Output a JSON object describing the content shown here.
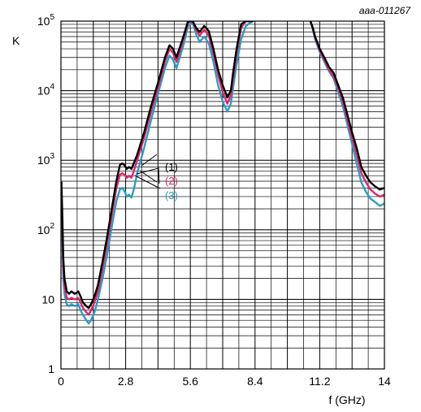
{
  "figure_id": "aaa-011267",
  "chart_data": {
    "type": "line",
    "title": "",
    "xlabel": "f (GHz)",
    "ylabel": "K",
    "xlim": [
      0,
      14
    ],
    "ylim": [
      1,
      100000
    ],
    "yscale": "log",
    "grid": true,
    "x_ticks": [
      0,
      2.8,
      5.6,
      8.4,
      11.2,
      14
    ],
    "x_tick_labels": [
      "0",
      "2.8",
      "5.6",
      "8.4",
      "11.2",
      "14"
    ],
    "y_ticks": [
      1,
      10,
      100,
      1000,
      10000,
      100000
    ],
    "y_tick_labels": [
      "1",
      "10",
      "10²",
      "10³",
      "10⁴",
      "10⁵"
    ],
    "colors": {
      "series_1": "#000000",
      "series_2": "#e0246e",
      "series_3": "#2a9dc4",
      "grid": "#000000"
    },
    "series": [
      {
        "name": "(1)",
        "segments": [
          {
            "x": [
              0.02,
              0.06,
              0.1,
              0.15,
              0.25,
              0.35,
              0.45,
              0.6,
              0.75,
              0.85,
              0.95,
              1.1,
              1.2,
              1.3,
              1.45,
              1.6,
              1.8,
              2.0,
              2.2,
              2.4,
              2.55,
              2.65,
              2.75,
              2.85,
              2.95,
              3.05,
              3.15,
              3.3,
              3.6,
              3.9,
              4.2,
              4.5,
              4.7,
              4.85,
              5.0,
              5.1,
              5.3,
              5.5,
              5.7,
              5.85,
              6.0,
              6.2,
              6.4,
              6.6,
              6.8,
              7.0,
              7.2,
              7.35,
              7.45,
              7.6,
              7.8,
              8.0,
              8.2,
              8.3
            ],
            "y": [
              480,
              160,
              40,
              20,
              13,
              12,
              13,
              12,
              13,
              11,
              9,
              8,
              7.5,
              8.5,
              11,
              16,
              35,
              80,
              200,
              500,
              850,
              900,
              850,
              750,
              800,
              750,
              900,
              1200,
              2500,
              6000,
              13000,
              30000,
              45000,
              40000,
              30000,
              38000,
              60000,
              100000,
              100000,
              80000,
              70000,
              85000,
              72000,
              40000,
              20000,
              12000,
              8000,
              10000,
              18000,
              40000,
              90000,
              100000,
              100000,
              100000
            ]
          },
          {
            "x": [
              10.8,
              10.9,
              11.0,
              11.2,
              11.4,
              11.6,
              11.8,
              12.0,
              12.2,
              12.4,
              12.6,
              12.8,
              13.0,
              13.2,
              13.4,
              13.6,
              13.8,
              14.0,
              14.1,
              14.2,
              14.3,
              14.4,
              14.5,
              14.55,
              14.6
            ],
            "y": [
              100000,
              80000,
              60000,
              40000,
              30000,
              22000,
              18000,
              12000,
              8000,
              4500,
              2500,
              1500,
              800,
              600,
              480,
              420,
              380,
              400,
              450,
              430,
              480,
              450,
              520,
              600,
              720
            ]
          }
        ]
      },
      {
        "name": "(2)",
        "segments": [
          {
            "x": [
              0.02,
              0.06,
              0.1,
              0.15,
              0.25,
              0.35,
              0.45,
              0.6,
              0.75,
              0.85,
              0.95,
              1.1,
              1.2,
              1.3,
              1.45,
              1.6,
              1.8,
              2.0,
              2.2,
              2.4,
              2.55,
              2.65,
              2.75,
              2.85,
              2.95,
              3.05,
              3.15,
              3.3,
              3.6,
              3.9,
              4.2,
              4.5,
              4.7,
              4.85,
              5.0,
              5.1,
              5.3,
              5.5,
              5.7,
              5.85,
              6.0,
              6.2,
              6.4,
              6.6,
              6.8,
              7.0,
              7.2,
              7.35,
              7.45,
              7.6,
              7.8,
              8.0,
              8.2,
              8.3
            ],
            "y": [
              400,
              130,
              30,
              16,
              10.5,
              10,
              10.5,
              10,
              10.5,
              9,
              7.5,
              6.5,
              6,
              7,
              9,
              13,
              28,
              65,
              160,
              400,
              620,
              650,
              620,
              560,
              600,
              560,
              700,
              1000,
              2100,
              5000,
              11000,
              26000,
              40000,
              35000,
              26000,
              33000,
              55000,
              95000,
              100000,
              75000,
              62000,
              75000,
              62000,
              34000,
              17000,
              9500,
              6500,
              8500,
              15000,
              34000,
              80000,
              100000,
              100000,
              100000
            ]
          },
          {
            "x": [
              10.8,
              10.9,
              11.0,
              11.2,
              11.4,
              11.6,
              11.8,
              12.0,
              12.2,
              12.4,
              12.6,
              12.8,
              13.0,
              13.2,
              13.4,
              13.6,
              13.8,
              14.0,
              14.1,
              14.2,
              14.3,
              14.4,
              14.5,
              14.55,
              14.6
            ],
            "y": [
              100000,
              78000,
              58000,
              38000,
              28000,
              20000,
              16000,
              11000,
              7000,
              3800,
              2100,
              1200,
              650,
              480,
              380,
              330,
              300,
              320,
              360,
              340,
              370,
              340,
              380,
              420,
              470
            ]
          }
        ]
      },
      {
        "name": "(3)",
        "segments": [
          {
            "x": [
              0.02,
              0.06,
              0.1,
              0.15,
              0.25,
              0.35,
              0.45,
              0.6,
              0.75,
              0.85,
              0.95,
              1.1,
              1.2,
              1.3,
              1.45,
              1.6,
              1.8,
              2.0,
              2.2,
              2.4,
              2.55,
              2.65,
              2.75,
              2.85,
              2.95,
              3.05,
              3.15,
              3.3,
              3.6,
              3.9,
              4.2,
              4.5,
              4.7,
              4.85,
              5.0,
              5.1,
              5.3,
              5.5,
              5.7,
              5.85,
              6.0,
              6.2,
              6.4,
              6.6,
              6.8,
              7.0,
              7.2,
              7.35,
              7.45,
              7.6,
              7.8,
              8.0,
              8.2,
              8.3
            ],
            "y": [
              300,
              90,
              20,
              12,
              8.5,
              8,
              8.5,
              8,
              8.5,
              7,
              6,
              5,
              4.5,
              5,
              6.5,
              10,
              20,
              45,
              110,
              260,
              380,
              400,
              360,
              300,
              320,
              290,
              380,
              650,
              1500,
              3800,
              9000,
              21000,
              32000,
              28000,
              21000,
              27000,
              45000,
              85000,
              95000,
              65000,
              50000,
              60000,
              48000,
              26000,
              12000,
              7000,
              5000,
              6500,
              11000,
              24000,
              55000,
              85000,
              95000,
              100000
            ]
          },
          {
            "x": [
              10.8,
              10.9,
              11.0,
              11.2,
              11.4,
              11.6,
              11.8,
              12.0,
              12.2,
              12.4,
              12.6,
              12.8,
              13.0,
              13.2,
              13.4,
              13.6,
              13.8,
              14.0,
              14.1,
              14.2,
              14.3,
              14.4,
              14.5,
              14.55,
              14.6
            ],
            "y": [
              100000,
              75000,
              55000,
              36000,
              26000,
              19000,
              15000,
              9500,
              6000,
              3200,
              1700,
              900,
              480,
              350,
              280,
              250,
              220,
              240,
              280,
              250,
              270,
              240,
              260,
              280,
              300
            ]
          }
        ]
      }
    ]
  }
}
